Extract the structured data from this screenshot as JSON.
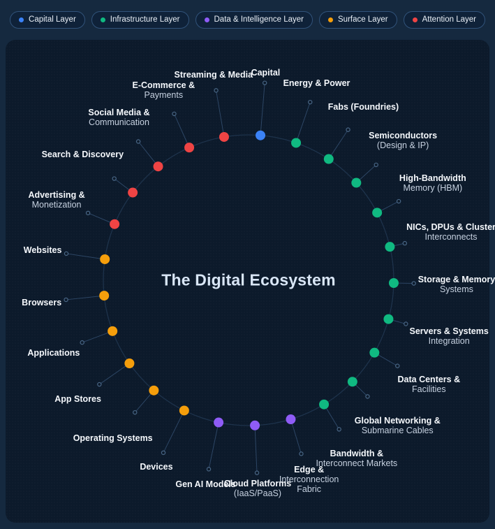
{
  "layers": {
    "capital": {
      "name": "Capital Layer",
      "color": "#3b82f6"
    },
    "infrastructure": {
      "name": "Infrastructure Layer",
      "color": "#10b981"
    },
    "data": {
      "name": "Data & Intelligence Layer",
      "color": "#8f5cf6"
    },
    "surface": {
      "name": "Surface Layer",
      "color": "#f59e0b"
    },
    "attention": {
      "name": "Attention Layer",
      "color": "#ef4444"
    }
  },
  "legend": {
    "items": [
      {
        "label": "Capital Layer",
        "layer": "capital"
      },
      {
        "label": "Infrastructure Layer",
        "layer": "infrastructure"
      },
      {
        "label": "Data & Intelligence Layer",
        "layer": "data"
      },
      {
        "label": "Surface Layer",
        "layer": "surface"
      },
      {
        "label": "Attention Layer",
        "layer": "attention"
      }
    ]
  },
  "diagram": {
    "center_title": "The Digital Ecosystem",
    "nodes": [
      {
        "title": "Capital",
        "sub": [],
        "layer": "capital"
      },
      {
        "title": "Energy & Power",
        "sub": [],
        "layer": "infrastructure"
      },
      {
        "title": "Fabs (Foundries)",
        "sub": [],
        "layer": "infrastructure"
      },
      {
        "title": "Semiconductors",
        "sub": [
          "(Design & IP)"
        ],
        "layer": "infrastructure"
      },
      {
        "title": "High-Bandwidth",
        "sub": [
          "Memory (HBM)"
        ],
        "layer": "infrastructure"
      },
      {
        "title": "NICs, DPUs & Cluster",
        "sub": [
          "Interconnects"
        ],
        "layer": "infrastructure"
      },
      {
        "title": "Storage & Memory",
        "sub": [
          "Systems"
        ],
        "layer": "infrastructure"
      },
      {
        "title": "Servers & Systems",
        "sub": [
          "Integration"
        ],
        "layer": "infrastructure"
      },
      {
        "title": "Data Centers &",
        "sub": [
          "Facilities"
        ],
        "layer": "infrastructure"
      },
      {
        "title": "Global Networking &",
        "sub": [
          "Submarine Cables"
        ],
        "layer": "infrastructure"
      },
      {
        "title": "Bandwidth &",
        "sub": [
          "Interconnect Markets"
        ],
        "layer": "infrastructure"
      },
      {
        "title": "Edge &",
        "sub": [
          "Interconnection",
          "Fabric"
        ],
        "layer": "data"
      },
      {
        "title": "Cloud Platforms",
        "sub": [
          "(IaaS/PaaS)"
        ],
        "layer": "data"
      },
      {
        "title": "Gen AI Models",
        "sub": [],
        "layer": "data"
      },
      {
        "title": "Devices",
        "sub": [],
        "layer": "surface"
      },
      {
        "title": "Operating Systems",
        "sub": [],
        "layer": "surface"
      },
      {
        "title": "App Stores",
        "sub": [],
        "layer": "surface"
      },
      {
        "title": "Applications",
        "sub": [],
        "layer": "surface"
      },
      {
        "title": "Browsers",
        "sub": [],
        "layer": "surface"
      },
      {
        "title": "Websites",
        "sub": [],
        "layer": "surface"
      },
      {
        "title": "Advertising &",
        "sub": [
          "Monetization"
        ],
        "layer": "attention"
      },
      {
        "title": "Search & Discovery",
        "sub": [],
        "layer": "attention"
      },
      {
        "title": "Social Media &",
        "sub": [
          "Communication"
        ],
        "layer": "attention"
      },
      {
        "title": "E-Commerce &",
        "sub": [
          "Payments"
        ],
        "layer": "attention"
      },
      {
        "title": "Streaming & Media",
        "sub": [],
        "layer": "attention"
      }
    ]
  }
}
